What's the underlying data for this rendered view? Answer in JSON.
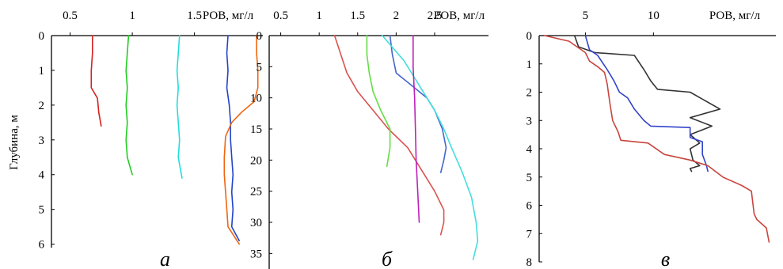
{
  "figure": {
    "y_axis_label": "Глубина, м"
  },
  "chart_data": [
    {
      "type": "line",
      "panel_label": "а",
      "x_unit_label": "РОВ, мг/л",
      "x_ticks": [
        "0.5",
        "1",
        "1.5"
      ],
      "y_ticks": [
        "0",
        "1",
        "2",
        "3",
        "4",
        "5",
        "6"
      ],
      "xlim": [
        0.35,
        2.05
      ],
      "ylim": [
        0,
        6.1
      ],
      "series": [
        {
          "color": "#d42020",
          "points": [
            [
              0.68,
              0
            ],
            [
              0.68,
              0.5
            ],
            [
              0.67,
              1.0
            ],
            [
              0.67,
              1.5
            ],
            [
              0.72,
              1.8
            ],
            [
              0.73,
              2.2
            ],
            [
              0.75,
              2.6
            ]
          ]
        },
        {
          "color": "#22cc22",
          "points": [
            [
              0.97,
              0
            ],
            [
              0.96,
              0.5
            ],
            [
              0.95,
              1.0
            ],
            [
              0.96,
              1.5
            ],
            [
              0.95,
              2.0
            ],
            [
              0.96,
              2.5
            ],
            [
              0.95,
              3.0
            ],
            [
              0.96,
              3.5
            ],
            [
              1.0,
              4.0
            ]
          ]
        },
        {
          "color": "#22dddd",
          "points": [
            [
              1.38,
              0
            ],
            [
              1.37,
              0.5
            ],
            [
              1.36,
              1.0
            ],
            [
              1.37,
              1.5
            ],
            [
              1.36,
              2.0
            ],
            [
              1.37,
              2.5
            ],
            [
              1.38,
              3.0
            ],
            [
              1.37,
              3.5
            ],
            [
              1.4,
              4.1
            ]
          ]
        },
        {
          "color": "#2244cc",
          "points": [
            [
              1.77,
              0
            ],
            [
              1.76,
              0.5
            ],
            [
              1.77,
              1.0
            ],
            [
              1.76,
              1.5
            ],
            [
              1.78,
              2.0
            ],
            [
              1.79,
              2.5
            ],
            [
              1.79,
              3.0
            ],
            [
              1.8,
              3.5
            ],
            [
              1.81,
              4.0
            ],
            [
              1.8,
              4.5
            ],
            [
              1.81,
              5.0
            ],
            [
              1.8,
              5.5
            ],
            [
              1.86,
              5.9
            ]
          ]
        },
        {
          "color": "#ee6611",
          "points": [
            [
              2.0,
              0
            ],
            [
              2.0,
              0.5
            ],
            [
              2.01,
              1.0
            ],
            [
              2.01,
              1.5
            ],
            [
              1.98,
              1.9
            ],
            [
              1.88,
              2.2
            ],
            [
              1.8,
              2.5
            ],
            [
              1.75,
              2.9
            ],
            [
              1.74,
              3.5
            ],
            [
              1.74,
              4.0
            ],
            [
              1.75,
              4.5
            ],
            [
              1.76,
              5.0
            ],
            [
              1.77,
              5.5
            ],
            [
              1.86,
              6.0
            ]
          ]
        }
      ]
    },
    {
      "type": "line",
      "panel_label": "б",
      "x_unit_label": "РОВ, мг/л",
      "x_ticks": [
        "0.5",
        "1",
        "1.5",
        "2",
        "2.5"
      ],
      "y_ticks": [
        "0",
        "5",
        "10",
        "15",
        "20",
        "25",
        "30",
        "35"
      ],
      "xlim": [
        0.35,
        3.2
      ],
      "ylim": [
        0,
        37.5
      ],
      "series": [
        {
          "color": "#d9534f",
          "points": [
            [
              1.2,
              0
            ],
            [
              1.28,
              3
            ],
            [
              1.36,
              6
            ],
            [
              1.5,
              9
            ],
            [
              1.7,
              12
            ],
            [
              1.9,
              15
            ],
            [
              2.15,
              18
            ],
            [
              2.35,
              22
            ],
            [
              2.5,
              25
            ],
            [
              2.62,
              28
            ],
            [
              2.62,
              30
            ],
            [
              2.58,
              32
            ]
          ]
        },
        {
          "color": "#66dd44",
          "points": [
            [
              1.62,
              0
            ],
            [
              1.62,
              3
            ],
            [
              1.65,
              6
            ],
            [
              1.7,
              9
            ],
            [
              1.8,
              12
            ],
            [
              1.92,
              15
            ],
            [
              1.92,
              18
            ],
            [
              1.88,
              21
            ]
          ]
        },
        {
          "color": "#4466cc",
          "points": [
            [
              1.92,
              0
            ],
            [
              1.95,
              3
            ],
            [
              2.0,
              6
            ],
            [
              2.2,
              8
            ],
            [
              2.4,
              10
            ],
            [
              2.5,
              12
            ],
            [
              2.6,
              15
            ],
            [
              2.65,
              18
            ],
            [
              2.62,
              20
            ],
            [
              2.58,
              22
            ]
          ]
        },
        {
          "color": "#44dddd",
          "points": [
            [
              1.82,
              0
            ],
            [
              2.1,
              4
            ],
            [
              2.3,
              8
            ],
            [
              2.5,
              12
            ],
            [
              2.62,
              15
            ],
            [
              2.72,
              18
            ],
            [
              2.86,
              22
            ],
            [
              2.98,
              26
            ],
            [
              3.04,
              30
            ],
            [
              3.06,
              33
            ],
            [
              3.0,
              36
            ]
          ]
        },
        {
          "color": "#bb22bb",
          "points": [
            [
              2.22,
              0
            ],
            [
              2.22,
              5
            ],
            [
              2.24,
              10
            ],
            [
              2.25,
              15
            ],
            [
              2.26,
              20
            ],
            [
              2.28,
              25
            ],
            [
              2.3,
              30
            ]
          ]
        }
      ]
    },
    {
      "type": "line",
      "panel_label": "в",
      "x_unit_label": "РОВ, мг/л",
      "x_ticks": [
        "5",
        "10"
      ],
      "y_ticks": [
        "0",
        "1",
        "2",
        "3",
        "4",
        "5",
        "6",
        "7",
        "8"
      ],
      "xlim": [
        1.6,
        19.0
      ],
      "ylim": [
        0,
        8.0
      ],
      "series": [
        {
          "color": "#333333",
          "points": [
            [
              4.2,
              0
            ],
            [
              4.5,
              0.4
            ],
            [
              5.7,
              0.6
            ],
            [
              8.6,
              0.7
            ],
            [
              9.3,
              1.2
            ],
            [
              9.8,
              1.6
            ],
            [
              10.3,
              1.9
            ],
            [
              12.7,
              2.0
            ],
            [
              14.9,
              2.6
            ],
            [
              12.7,
              2.9
            ],
            [
              14.3,
              3.2
            ],
            [
              12.7,
              3.5
            ],
            [
              13.4,
              3.8
            ],
            [
              12.7,
              4.0
            ],
            [
              12.9,
              4.4
            ],
            [
              13.4,
              4.6
            ],
            [
              12.7,
              4.7
            ],
            [
              12.8,
              4.8
            ]
          ]
        },
        {
          "color": "#3344cc",
          "points": [
            [
              5.0,
              0
            ],
            [
              5.3,
              0.5
            ],
            [
              5.9,
              0.7
            ],
            [
              6.6,
              1.2
            ],
            [
              7.1,
              1.6
            ],
            [
              7.5,
              2.0
            ],
            [
              8.1,
              2.2
            ],
            [
              8.6,
              2.6
            ],
            [
              9.3,
              3.0
            ],
            [
              9.8,
              3.2
            ],
            [
              12.7,
              3.25
            ],
            [
              12.7,
              3.6
            ],
            [
              13.6,
              3.75
            ],
            [
              13.6,
              4.2
            ],
            [
              13.9,
              4.6
            ],
            [
              14.0,
              4.8
            ]
          ]
        },
        {
          "color": "#c9453f",
          "points": [
            [
              2.0,
              0
            ],
            [
              3.8,
              0.2
            ],
            [
              5.0,
              0.6
            ],
            [
              5.3,
              0.9
            ],
            [
              5.9,
              1.1
            ],
            [
              6.4,
              1.3
            ],
            [
              6.6,
              1.7
            ],
            [
              6.8,
              2.4
            ],
            [
              7.0,
              3.0
            ],
            [
              7.4,
              3.4
            ],
            [
              7.6,
              3.7
            ],
            [
              9.6,
              3.8
            ],
            [
              10.8,
              4.2
            ],
            [
              12.7,
              4.4
            ],
            [
              14.0,
              4.6
            ],
            [
              15.1,
              5.0
            ],
            [
              16.5,
              5.3
            ],
            [
              17.2,
              5.5
            ],
            [
              17.4,
              6.3
            ],
            [
              17.6,
              6.5
            ],
            [
              18.3,
              6.8
            ],
            [
              18.5,
              7.3
            ]
          ]
        }
      ]
    }
  ]
}
